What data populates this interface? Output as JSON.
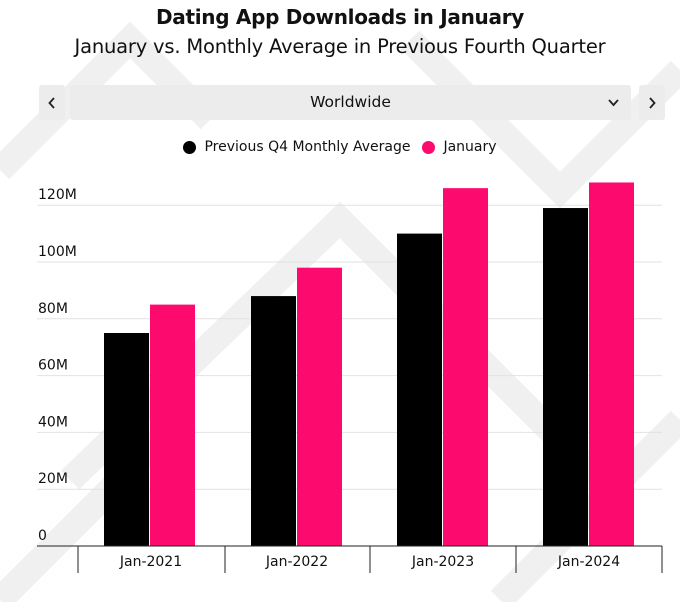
{
  "header": {
    "title": "Dating App Downloads in January",
    "subtitle": "January vs. Monthly Average in Previous Fourth Quarter"
  },
  "region_selector": {
    "selected": "Worldwide",
    "prev_icon": "chevron-left-icon",
    "next_icon": "chevron-right-icon",
    "dropdown_icon": "chevron-down-icon"
  },
  "colors": {
    "previous_q4": "#000000",
    "january": "#fc0a6e"
  },
  "chart_data": {
    "type": "bar",
    "title": "Dating App Downloads in January",
    "subtitle": "January vs. Monthly Average in Previous Fourth Quarter",
    "categories": [
      "Jan-2021",
      "Jan-2022",
      "Jan-2023",
      "Jan-2024"
    ],
    "series": [
      {
        "name": "Previous Q4 Monthly Average",
        "values": [
          75,
          88,
          110,
          119
        ]
      },
      {
        "name": "January",
        "values": [
          85,
          98,
          126,
          128
        ]
      }
    ],
    "y_ticks": [
      "0",
      "20M",
      "40M",
      "60M",
      "80M",
      "100M",
      "120M"
    ],
    "y_tick_values": [
      0,
      20,
      40,
      60,
      80,
      100,
      120
    ],
    "ylim": [
      0,
      132
    ],
    "unit": "M",
    "grid": true,
    "legend_position": "top-center",
    "xlabel": "",
    "ylabel": ""
  }
}
